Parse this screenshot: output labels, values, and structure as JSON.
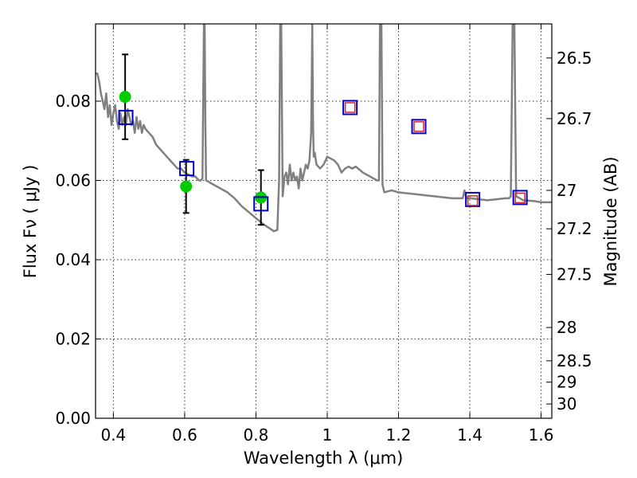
{
  "chart_data": {
    "type": "scatter",
    "xlabel": "Wavelength  λ (μm)",
    "ylabel": "Flux  Fν  ( μJy )",
    "ylabel_right": "Magnitude (AB)",
    "xlim": [
      0.35,
      1.63
    ],
    "ylim": [
      0.0,
      0.0995
    ],
    "grid": true,
    "x_ticks": [
      0.4,
      0.6,
      0.8,
      1.0,
      1.2,
      1.4,
      1.6
    ],
    "x_tick_labels": [
      "0.4",
      "0.6",
      "0.8",
      "1",
      "1.2",
      "1.4",
      "1.6"
    ],
    "y_ticks": [
      0.0,
      0.02,
      0.04,
      0.06,
      0.08
    ],
    "y_tick_labels": [
      "0.00",
      "0.02",
      "0.04",
      "0.06",
      "0.08"
    ],
    "right_ticks": [
      {
        "label": "26.5",
        "flux": 0.0909
      },
      {
        "label": "26.7",
        "flux": 0.0756
      },
      {
        "label": "27",
        "flux": 0.0575
      },
      {
        "label": "27.2",
        "flux": 0.0478
      },
      {
        "label": "27.5",
        "flux": 0.0363
      },
      {
        "label": "28",
        "flux": 0.0229
      },
      {
        "label": "28.5",
        "flux": 0.0145
      },
      {
        "label": "29",
        "flux": 0.0091
      },
      {
        "label": "30",
        "flux": 0.0036
      }
    ],
    "series": [
      {
        "kind": "line",
        "color": "#808080",
        "x": [
          0.35,
          0.355,
          0.36,
          0.365,
          0.37,
          0.375,
          0.38,
          0.385,
          0.39,
          0.395,
          0.4,
          0.405,
          0.41,
          0.415,
          0.42,
          0.425,
          0.43,
          0.435,
          0.44,
          0.445,
          0.45,
          0.455,
          0.46,
          0.465,
          0.47,
          0.475,
          0.48,
          0.485,
          0.49,
          0.5,
          0.51,
          0.52,
          0.53,
          0.54,
          0.55,
          0.56,
          0.57,
          0.58,
          0.59,
          0.6,
          0.61,
          0.62,
          0.63,
          0.64,
          0.645,
          0.65,
          0.652,
          0.654,
          0.656,
          0.658,
          0.66,
          0.665,
          0.67,
          0.68,
          0.7,
          0.72,
          0.74,
          0.76,
          0.78,
          0.8,
          0.82,
          0.84,
          0.85,
          0.86,
          0.865,
          0.868,
          0.871,
          0.875,
          0.88,
          0.885,
          0.89,
          0.895,
          0.9,
          0.905,
          0.91,
          0.915,
          0.92,
          0.925,
          0.93,
          0.935,
          0.94,
          0.945,
          0.95,
          0.955,
          0.958,
          0.96,
          0.962,
          0.965,
          0.97,
          0.98,
          0.99,
          1.0,
          1.01,
          1.02,
          1.03,
          1.04,
          1.05,
          1.06,
          1.07,
          1.08,
          1.1,
          1.12,
          1.14,
          1.145,
          1.148,
          1.15,
          1.152,
          1.155,
          1.16,
          1.18,
          1.2,
          1.25,
          1.3,
          1.35,
          1.38,
          1.385,
          1.39,
          1.4,
          1.45,
          1.5,
          1.51,
          1.515,
          1.52,
          1.525,
          1.53,
          1.55,
          1.58,
          1.6,
          1.63
        ],
        "y": [
          0.087,
          0.087,
          0.085,
          0.082,
          0.08,
          0.078,
          0.082,
          0.076,
          0.079,
          0.074,
          0.077,
          0.079,
          0.075,
          0.073,
          0.077,
          0.074,
          0.076,
          0.074,
          0.078,
          0.076,
          0.074,
          0.075,
          0.072,
          0.076,
          0.073,
          0.075,
          0.072,
          0.074,
          0.073,
          0.072,
          0.071,
          0.069,
          0.068,
          0.067,
          0.066,
          0.065,
          0.064,
          0.063,
          0.063,
          0.062,
          0.0615,
          0.061,
          0.061,
          0.06,
          0.06,
          0.0605,
          0.08,
          0.0995,
          0.0995,
          0.075,
          0.06,
          0.0598,
          0.0595,
          0.059,
          0.058,
          0.057,
          0.0555,
          0.0535,
          0.052,
          0.0505,
          0.049,
          0.0478,
          0.0472,
          0.0475,
          0.06,
          0.0995,
          0.0995,
          0.056,
          0.061,
          0.062,
          0.059,
          0.064,
          0.06,
          0.062,
          0.06,
          0.061,
          0.058,
          0.063,
          0.06,
          0.062,
          0.064,
          0.063,
          0.065,
          0.072,
          0.0995,
          0.075,
          0.066,
          0.067,
          0.064,
          0.063,
          0.064,
          0.066,
          0.0655,
          0.065,
          0.064,
          0.062,
          0.063,
          0.0635,
          0.063,
          0.0635,
          0.062,
          0.061,
          0.06,
          0.06,
          0.0995,
          0.0995,
          0.0995,
          0.059,
          0.057,
          0.0575,
          0.057,
          0.0565,
          0.056,
          0.0555,
          0.0555,
          0.0575,
          0.0555,
          0.0555,
          0.055,
          0.0555,
          0.0555,
          0.056,
          0.0995,
          0.0995,
          0.056,
          0.055,
          0.0548,
          0.0545,
          0.0545
        ]
      },
      {
        "kind": "scatter",
        "marker": "circle",
        "color": "#00cc00",
        "x": [
          0.433,
          0.604,
          0.814
        ],
        "y": [
          0.0811,
          0.0585,
          0.0557
        ],
        "yerr": [
          0.0107,
          0.0067,
          0.0069
        ]
      },
      {
        "kind": "scatter",
        "marker": "square",
        "color": "#0000cc",
        "x": [
          0.435,
          0.606,
          0.814,
          1.064,
          1.257,
          1.408,
          1.541
        ],
        "y": [
          0.0759,
          0.063,
          0.0541,
          0.0784,
          0.0736,
          0.0552,
          0.0557
        ]
      },
      {
        "kind": "scatter",
        "marker": "square",
        "color": "#dd2222",
        "x": [
          1.064,
          1.257,
          1.408,
          1.541
        ],
        "y": [
          0.0784,
          0.0736,
          0.0549,
          0.0556
        ]
      }
    ]
  }
}
